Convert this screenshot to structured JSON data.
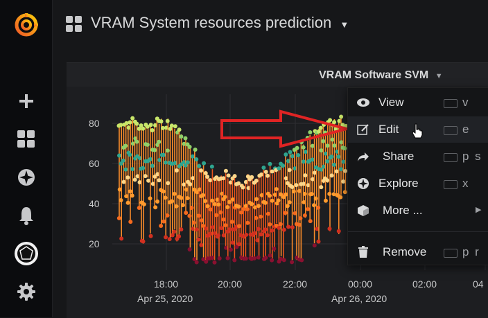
{
  "dashboard": {
    "title": "VRAM System resources prediction"
  },
  "panel": {
    "title": "VRAM Software SVM"
  },
  "menu": {
    "items": [
      {
        "label": "View",
        "shortcut": "v",
        "icon": "eye-icon"
      },
      {
        "label": "Edit",
        "shortcut": "e",
        "icon": "edit-icon"
      },
      {
        "label": "Share",
        "shortcut": "p s",
        "icon": "share-icon"
      },
      {
        "label": "Explore",
        "shortcut": "x",
        "icon": "compass-icon"
      },
      {
        "label": "More ...",
        "shortcut": "",
        "icon": "cube-icon"
      },
      {
        "label": "Remove",
        "shortcut": "p r",
        "icon": "trash-icon"
      }
    ]
  },
  "chart_data": {
    "type": "scatter",
    "y_ticks": [
      "80",
      "60",
      "40",
      "20"
    ],
    "x_ticks": [
      {
        "time": "18:00",
        "date": "Apr 25, 2020"
      },
      {
        "time": "20:00",
        "date": ""
      },
      {
        "time": "22:00",
        "date": ""
      },
      {
        "time": "00:00",
        "date": "Apr 26, 2020"
      },
      {
        "time": "02:00",
        "date": ""
      },
      {
        "time": "04",
        "date": ""
      }
    ],
    "ylim": [
      10,
      90
    ],
    "colors": [
      "#c8e66a",
      "#8fd06a",
      "#2fa58f",
      "#fbd68a",
      "#ff9a2e",
      "#f56a1e",
      "#d23020",
      "#8a1030"
    ]
  },
  "colors": {
    "accent": "#f05a28",
    "annotation_arrow": "#e02424"
  }
}
